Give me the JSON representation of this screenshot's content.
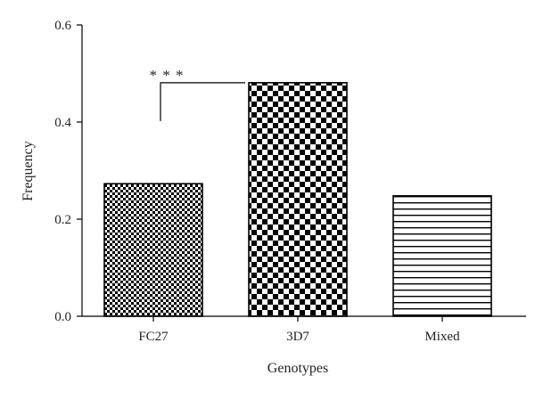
{
  "chart_data": {
    "type": "bar",
    "title": "",
    "xlabel": "Genotypes",
    "ylabel": "Frequency",
    "categories": [
      "FC27",
      "3D7",
      "Mixed"
    ],
    "values": [
      0.273,
      0.481,
      0.248
    ],
    "patterns": [
      "fine-checker",
      "coarse-checker",
      "horizontal-lines"
    ],
    "ylim": [
      0,
      0.6
    ],
    "yticks": [
      0.0,
      0.2,
      0.4,
      0.6
    ],
    "ytick_labels": [
      "0.0",
      "0.2",
      "0.4",
      "0.6"
    ],
    "grid": false,
    "legend": "none",
    "colors": {
      "bar_fill": "#000000",
      "bar_background": "#ffffff",
      "axis": "#000000",
      "text": "#222222"
    },
    "annotations": [
      {
        "text": "* * *",
        "from_category": "FC27",
        "to_category": "3D7",
        "meaning": "significance bracket"
      }
    ]
  }
}
